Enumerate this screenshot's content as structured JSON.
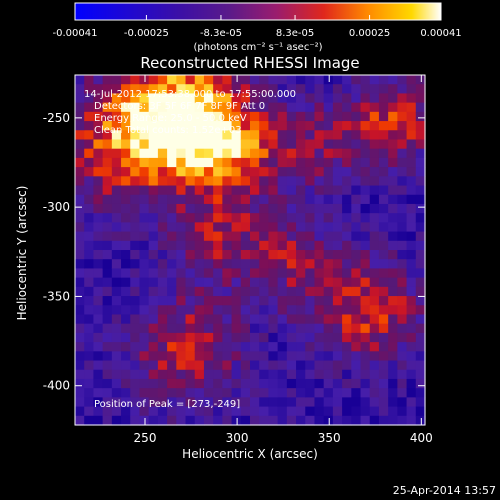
{
  "chart_data": {
    "type": "heatmap",
    "title": "Reconstructed RHESSI Image",
    "xlabel": "Heliocentric X (arcsec)",
    "ylabel": "Heliocentric Y (arcsec)",
    "xlim": [
      212,
      402
    ],
    "ylim": [
      -422,
      -226
    ],
    "x_ticks": [
      250,
      300,
      350,
      400
    ],
    "y_ticks": [
      -250,
      -300,
      -350,
      -400
    ],
    "colorbar": {
      "ticks": [
        "-0.00041",
        "-0.00025",
        "-8.3e-05",
        "8.3e-05",
        "0.00025",
        "0.00041"
      ],
      "tick_values": [
        -0.00041,
        -0.00025,
        -8.3e-05,
        8.3e-05,
        0.00025,
        0.00041
      ],
      "range": [
        -0.00041,
        0.00041
      ],
      "units": "(photons cm⁻² s⁻¹ asec⁻²)"
    },
    "annotations": [
      "14-Jul-2012 17:53:38.000 to 17:55:00.000",
      "Detectors: 3F 5F 6F 7F 8F 9F Att 0",
      "Energy Range: 25.0 - 50.0 keV",
      "Clean    Total counts: 1.52e+03"
    ],
    "peak_label": "Position of Peak = [273,-249]",
    "peak": [
      273,
      -249
    ],
    "hot_regions": [
      {
        "x": 273,
        "y": -249,
        "sigma": 22,
        "amp": 1.0
      },
      {
        "x": 240,
        "y": -262,
        "sigma": 26,
        "amp": 0.8
      },
      {
        "x": 300,
        "y": -270,
        "sigma": 20,
        "amp": 0.6
      },
      {
        "x": 385,
        "y": -252,
        "sigma": 16,
        "amp": 0.7
      },
      {
        "x": 372,
        "y": -358,
        "sigma": 20,
        "amp": 0.7
      },
      {
        "x": 272,
        "y": -380,
        "sigma": 22,
        "amp": 0.6
      },
      {
        "x": 330,
        "y": -330,
        "sigma": 18,
        "amp": 0.45
      },
      {
        "x": 345,
        "y": -265,
        "sigma": 18,
        "amp": 0.4
      },
      {
        "x": 290,
        "y": -318,
        "sigma": 18,
        "amp": 0.45
      }
    ]
  },
  "timestamp": "25-Apr-2014 13:57"
}
